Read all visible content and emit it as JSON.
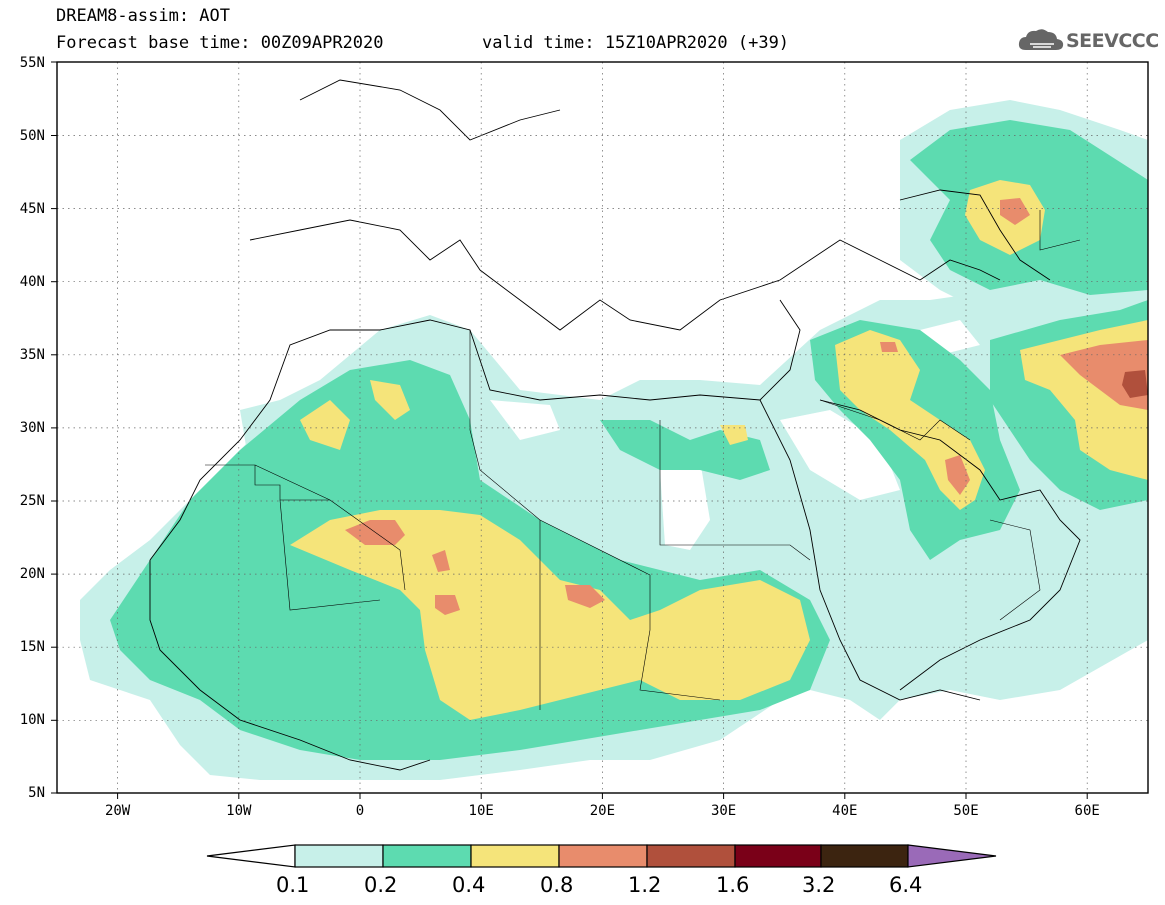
{
  "header": {
    "line1": "DREAM8-assim: AOT",
    "line2": "Forecast base time: 00Z09APR2020",
    "valid": "valid time: 15Z10APR2020 (+39)",
    "logo_text": "SEEVCCC"
  },
  "map": {
    "lat_labels": [
      "55N",
      "50N",
      "45N",
      "40N",
      "35N",
      "30N",
      "25N",
      "20N",
      "15N",
      "10N",
      "5N"
    ],
    "lon_labels": [
      "20W",
      "10W",
      "0",
      "10E",
      "20E",
      "30E",
      "40E",
      "50E",
      "60E"
    ],
    "lat_range": [
      5,
      55
    ],
    "lon_range": [
      -25,
      65
    ],
    "variable": "AOT",
    "grid": "dotted"
  },
  "colorbar": {
    "ticks": [
      "0.1",
      "0.2",
      "0.4",
      "0.8",
      "1.2",
      "1.6",
      "3.2",
      "6.4"
    ],
    "colors": [
      "#ffffff",
      "#c7f0e9",
      "#5ddbb0",
      "#f5e47a",
      "#e88c6c",
      "#b0503c",
      "#7a0018",
      "#3c2410",
      "#9a6ab8"
    ]
  }
}
